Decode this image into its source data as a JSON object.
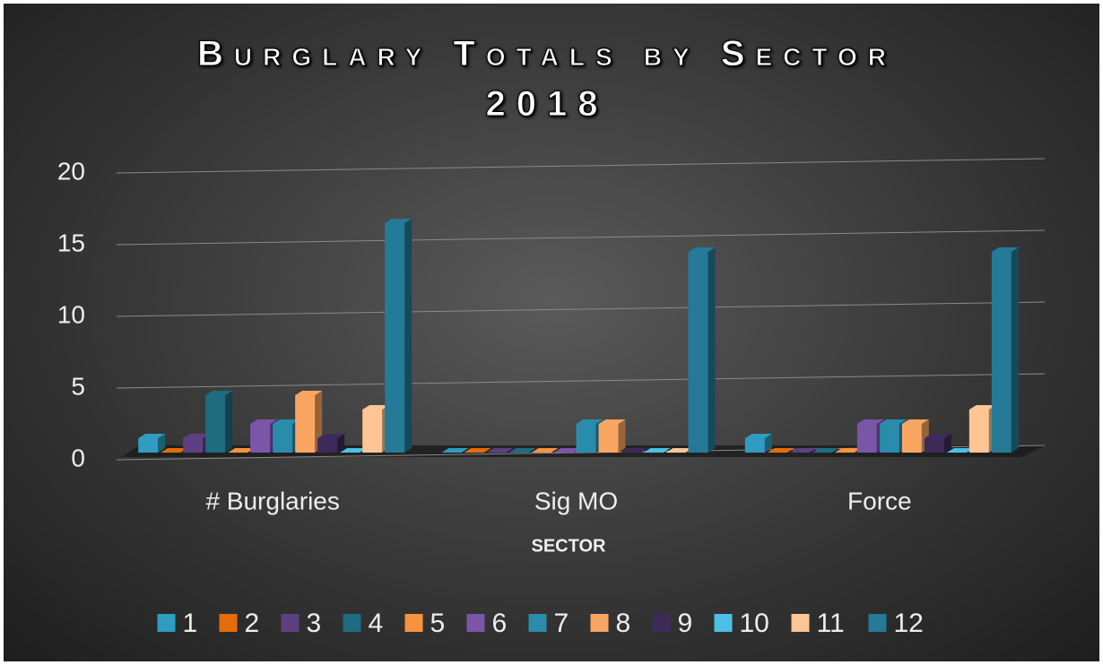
{
  "chart_data": {
    "type": "bar3d",
    "title": "Burglary Totals by Sector 2018",
    "x_label": "SECTOR",
    "categories": [
      "# Burglaries",
      "Sig MO",
      "Force"
    ],
    "series": [
      {
        "name": "1",
        "color": "#2f9cc0",
        "values": [
          1,
          0,
          1
        ]
      },
      {
        "name": "2",
        "color": "#e46c0a",
        "values": [
          0,
          0,
          0
        ]
      },
      {
        "name": "3",
        "color": "#5e3f82",
        "values": [
          1,
          0,
          0
        ]
      },
      {
        "name": "4",
        "color": "#1f6c80",
        "values": [
          4,
          0,
          0
        ]
      },
      {
        "name": "5",
        "color": "#f7923e",
        "values": [
          0,
          0,
          0
        ]
      },
      {
        "name": "6",
        "color": "#7a55a8",
        "values": [
          2,
          0,
          2
        ]
      },
      {
        "name": "7",
        "color": "#2a8cad",
        "values": [
          2,
          2,
          2
        ]
      },
      {
        "name": "8",
        "color": "#f9a663",
        "values": [
          4,
          2,
          2
        ]
      },
      {
        "name": "9",
        "color": "#3e2a58",
        "values": [
          1,
          0,
          1
        ]
      },
      {
        "name": "10",
        "color": "#4cc0e4",
        "values": [
          0,
          0,
          0
        ]
      },
      {
        "name": "11",
        "color": "#fcc593",
        "values": [
          3,
          0,
          3
        ]
      },
      {
        "name": "12",
        "color": "#247a97",
        "values": [
          16,
          14,
          14
        ]
      }
    ],
    "ylim": [
      0,
      20
    ],
    "yticks": [
      0,
      5,
      10,
      15,
      20
    ],
    "grid": true,
    "legend": "bottom"
  }
}
